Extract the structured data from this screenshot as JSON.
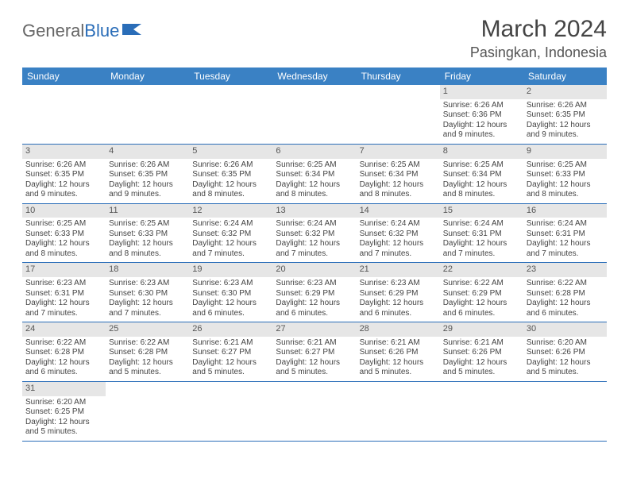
{
  "logo": {
    "general": "General",
    "blue": "Blue"
  },
  "header": {
    "title": "March 2024",
    "location": "Pasingkan, Indonesia"
  },
  "colors": {
    "header_bg": "#3a81c4",
    "header_text": "#ffffff",
    "daynum_bg": "#e6e6e6",
    "border": "#2a6db8",
    "body_text": "#444444",
    "logo_blue": "#2a6db8"
  },
  "fonts": {
    "title_size": 30,
    "location_size": 18,
    "dayhdr_size": 12,
    "cell_size": 10
  },
  "calendar": {
    "day_headers": [
      "Sunday",
      "Monday",
      "Tuesday",
      "Wednesday",
      "Thursday",
      "Friday",
      "Saturday"
    ],
    "weeks": [
      [
        {
          "n": "",
          "t": ""
        },
        {
          "n": "",
          "t": ""
        },
        {
          "n": "",
          "t": ""
        },
        {
          "n": "",
          "t": ""
        },
        {
          "n": "",
          "t": ""
        },
        {
          "n": "1",
          "t": "Sunrise: 6:26 AM\nSunset: 6:36 PM\nDaylight: 12 hours and 9 minutes."
        },
        {
          "n": "2",
          "t": "Sunrise: 6:26 AM\nSunset: 6:35 PM\nDaylight: 12 hours and 9 minutes."
        }
      ],
      [
        {
          "n": "3",
          "t": "Sunrise: 6:26 AM\nSunset: 6:35 PM\nDaylight: 12 hours and 9 minutes."
        },
        {
          "n": "4",
          "t": "Sunrise: 6:26 AM\nSunset: 6:35 PM\nDaylight: 12 hours and 9 minutes."
        },
        {
          "n": "5",
          "t": "Sunrise: 6:26 AM\nSunset: 6:35 PM\nDaylight: 12 hours and 8 minutes."
        },
        {
          "n": "6",
          "t": "Sunrise: 6:25 AM\nSunset: 6:34 PM\nDaylight: 12 hours and 8 minutes."
        },
        {
          "n": "7",
          "t": "Sunrise: 6:25 AM\nSunset: 6:34 PM\nDaylight: 12 hours and 8 minutes."
        },
        {
          "n": "8",
          "t": "Sunrise: 6:25 AM\nSunset: 6:34 PM\nDaylight: 12 hours and 8 minutes."
        },
        {
          "n": "9",
          "t": "Sunrise: 6:25 AM\nSunset: 6:33 PM\nDaylight: 12 hours and 8 minutes."
        }
      ],
      [
        {
          "n": "10",
          "t": "Sunrise: 6:25 AM\nSunset: 6:33 PM\nDaylight: 12 hours and 8 minutes."
        },
        {
          "n": "11",
          "t": "Sunrise: 6:25 AM\nSunset: 6:33 PM\nDaylight: 12 hours and 8 minutes."
        },
        {
          "n": "12",
          "t": "Sunrise: 6:24 AM\nSunset: 6:32 PM\nDaylight: 12 hours and 7 minutes."
        },
        {
          "n": "13",
          "t": "Sunrise: 6:24 AM\nSunset: 6:32 PM\nDaylight: 12 hours and 7 minutes."
        },
        {
          "n": "14",
          "t": "Sunrise: 6:24 AM\nSunset: 6:32 PM\nDaylight: 12 hours and 7 minutes."
        },
        {
          "n": "15",
          "t": "Sunrise: 6:24 AM\nSunset: 6:31 PM\nDaylight: 12 hours and 7 minutes."
        },
        {
          "n": "16",
          "t": "Sunrise: 6:24 AM\nSunset: 6:31 PM\nDaylight: 12 hours and 7 minutes."
        }
      ],
      [
        {
          "n": "17",
          "t": "Sunrise: 6:23 AM\nSunset: 6:31 PM\nDaylight: 12 hours and 7 minutes."
        },
        {
          "n": "18",
          "t": "Sunrise: 6:23 AM\nSunset: 6:30 PM\nDaylight: 12 hours and 7 minutes."
        },
        {
          "n": "19",
          "t": "Sunrise: 6:23 AM\nSunset: 6:30 PM\nDaylight: 12 hours and 6 minutes."
        },
        {
          "n": "20",
          "t": "Sunrise: 6:23 AM\nSunset: 6:29 PM\nDaylight: 12 hours and 6 minutes."
        },
        {
          "n": "21",
          "t": "Sunrise: 6:23 AM\nSunset: 6:29 PM\nDaylight: 12 hours and 6 minutes."
        },
        {
          "n": "22",
          "t": "Sunrise: 6:22 AM\nSunset: 6:29 PM\nDaylight: 12 hours and 6 minutes."
        },
        {
          "n": "23",
          "t": "Sunrise: 6:22 AM\nSunset: 6:28 PM\nDaylight: 12 hours and 6 minutes."
        }
      ],
      [
        {
          "n": "24",
          "t": "Sunrise: 6:22 AM\nSunset: 6:28 PM\nDaylight: 12 hours and 6 minutes."
        },
        {
          "n": "25",
          "t": "Sunrise: 6:22 AM\nSunset: 6:28 PM\nDaylight: 12 hours and 5 minutes."
        },
        {
          "n": "26",
          "t": "Sunrise: 6:21 AM\nSunset: 6:27 PM\nDaylight: 12 hours and 5 minutes."
        },
        {
          "n": "27",
          "t": "Sunrise: 6:21 AM\nSunset: 6:27 PM\nDaylight: 12 hours and 5 minutes."
        },
        {
          "n": "28",
          "t": "Sunrise: 6:21 AM\nSunset: 6:26 PM\nDaylight: 12 hours and 5 minutes."
        },
        {
          "n": "29",
          "t": "Sunrise: 6:21 AM\nSunset: 6:26 PM\nDaylight: 12 hours and 5 minutes."
        },
        {
          "n": "30",
          "t": "Sunrise: 6:20 AM\nSunset: 6:26 PM\nDaylight: 12 hours and 5 minutes."
        }
      ],
      [
        {
          "n": "31",
          "t": "Sunrise: 6:20 AM\nSunset: 6:25 PM\nDaylight: 12 hours and 5 minutes."
        },
        {
          "n": "",
          "t": ""
        },
        {
          "n": "",
          "t": ""
        },
        {
          "n": "",
          "t": ""
        },
        {
          "n": "",
          "t": ""
        },
        {
          "n": "",
          "t": ""
        },
        {
          "n": "",
          "t": ""
        }
      ]
    ]
  }
}
